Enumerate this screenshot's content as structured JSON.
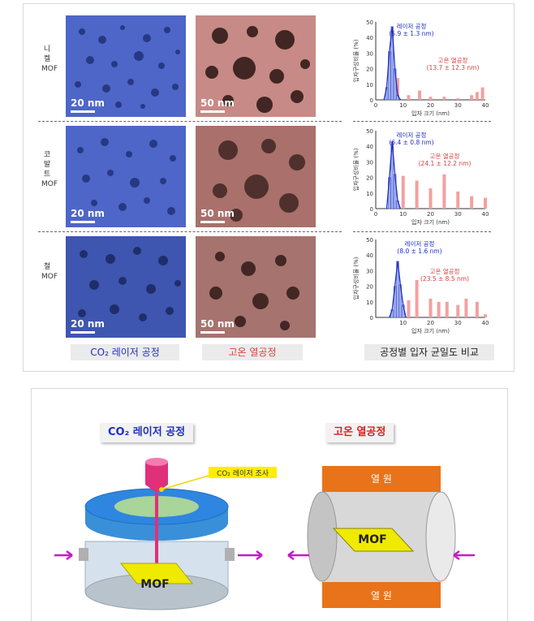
{
  "rows": [
    {
      "label": "니켈 MOF",
      "laser_scale": "20 nm",
      "thermal_scale": "50 nm"
    },
    {
      "label": "코발트 MOF",
      "laser_scale": "20 nm",
      "thermal_scale": "50 nm"
    },
    {
      "label": "철 MOF",
      "laser_scale": "20 nm",
      "thermal_scale": "50 nm"
    }
  ],
  "captions": {
    "laser": "CO₂ 레이저 공정",
    "thermal": "고온 열공정",
    "compare": "공정별 입자 균일도 비교"
  },
  "colors": {
    "laser": "#1f2fbf",
    "thermal": "#d94040",
    "laser_img": "#4a64c9",
    "thermal_img": "#c48383"
  },
  "chart_data": [
    {
      "type": "bar",
      "xlabel": "입자 크기 (nm)",
      "ylabel": "입자구성비율 (%)",
      "xlim": [
        0,
        40
      ],
      "ylim": [
        0,
        50
      ],
      "xticks": [
        0,
        10,
        20,
        30,
        40
      ],
      "yticks": [
        0,
        10,
        20,
        30,
        40,
        50
      ],
      "series": [
        {
          "name": "레이저 공정",
          "stat": "(5.9 ± 1.3 nm)",
          "x": [
            4,
            5,
            6,
            7,
            8
          ],
          "values": [
            8,
            31,
            47,
            20,
            3
          ]
        },
        {
          "name": "고온 열공정",
          "stat": "(13.7 ± 12.3 nm)",
          "x": [
            8,
            12,
            16,
            20,
            25,
            30,
            35,
            37,
            39
          ],
          "values": [
            14,
            3,
            6,
            2,
            2,
            1,
            3,
            5,
            8
          ]
        }
      ]
    },
    {
      "type": "bar",
      "xlabel": "입자 크기 (nm)",
      "ylabel": "입자구성비율 (%)",
      "xlim": [
        0,
        40
      ],
      "ylim": [
        0,
        50
      ],
      "xticks": [
        0,
        10,
        20,
        30,
        40
      ],
      "yticks": [
        0,
        10,
        20,
        30,
        40,
        50
      ],
      "series": [
        {
          "name": "레이저 공정",
          "stat": "(6.4 ± 0.8 nm)",
          "x": [
            5,
            6,
            7,
            8
          ],
          "values": [
            20,
            43,
            22,
            5
          ]
        },
        {
          "name": "고온 열공정",
          "stat": "(24.1 ± 12.2 nm)",
          "x": [
            10,
            15,
            20,
            25,
            30,
            35,
            40
          ],
          "values": [
            21,
            18,
            13,
            22,
            11,
            8,
            7
          ]
        }
      ]
    },
    {
      "type": "bar",
      "xlabel": "입자 크기 (nm)",
      "ylabel": "입자구성비율 (%)",
      "xlim": [
        0,
        40
      ],
      "ylim": [
        0,
        50
      ],
      "xticks": [
        10,
        20,
        30,
        40
      ],
      "yticks": [
        0,
        10,
        20,
        30,
        40,
        50
      ],
      "series": [
        {
          "name": "레이저 공정",
          "stat": "(8.0 ± 1.6 nm)",
          "x": [
            6,
            7,
            8,
            9,
            10
          ],
          "values": [
            5,
            20,
            36,
            21,
            8
          ]
        },
        {
          "name": "고온 열공정",
          "stat": "(23.5 ± 8.5 nm)",
          "x": [
            12,
            15,
            20,
            23,
            26,
            30,
            33,
            37,
            40
          ],
          "values": [
            11,
            24,
            12,
            10,
            10,
            8,
            12,
            10,
            2
          ]
        }
      ]
    }
  ],
  "diagram": {
    "laser_title": "CO₂ 레이저 공정",
    "thermal_title": "고온 열공정",
    "laser_beam_label": "CO₂ 레이저 조사",
    "mof_label": "MOF",
    "heat_source_label": "열 원"
  }
}
